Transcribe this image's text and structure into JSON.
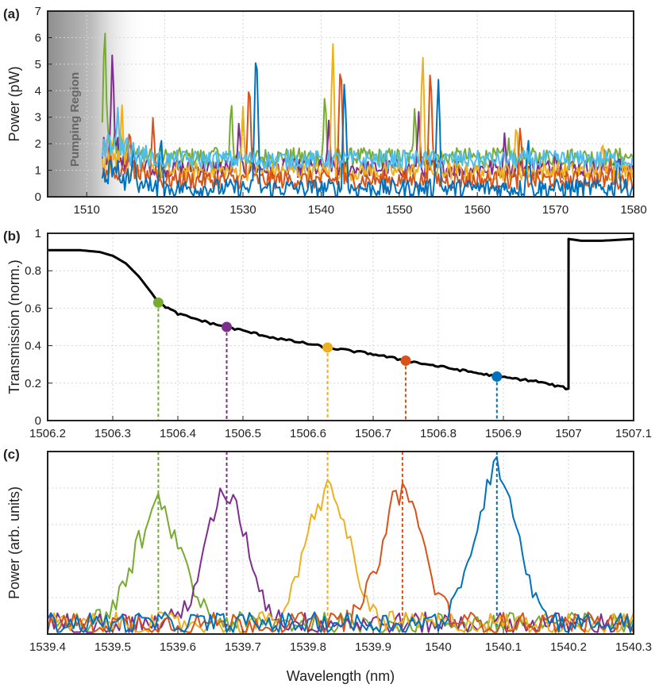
{
  "panels": [
    {
      "label": "(a)",
      "ylabel": "Power (pW)",
      "xlim": [
        1505,
        1580
      ],
      "ylim": [
        0,
        7
      ],
      "xticks": [
        1510,
        1520,
        1530,
        1540,
        1550,
        1560,
        1570,
        1580
      ],
      "yticks": [
        0,
        1,
        2,
        3,
        4,
        5,
        6,
        7
      ],
      "annotation": "Pumping Region",
      "grid": true
    },
    {
      "label": "(b)",
      "ylabel": "Transmission (norm.)",
      "xlim": [
        1506.2,
        1507.1
      ],
      "ylim": [
        0,
        1
      ],
      "xticks": [
        1506.2,
        1506.3,
        1506.4,
        1506.5,
        1506.6,
        1506.7,
        1506.8,
        1506.9,
        1507,
        1507.1
      ],
      "yticks": [
        0,
        0.2,
        0.4,
        0.6,
        0.8,
        1
      ],
      "grid": true
    },
    {
      "label": "(c)",
      "ylabel": "Power (arb. units)",
      "xlabel": "Wavelength (nm)",
      "xlim": [
        1539.4,
        1540.3
      ],
      "xticks": [
        1539.4,
        1539.5,
        1539.6,
        1539.7,
        1539.8,
        1539.9,
        1540,
        1540.1,
        1540.2,
        1540.3
      ],
      "grid": true
    }
  ],
  "chart_data": [
    {
      "type": "line",
      "panel": "(a)",
      "ylabel": "Power (pW)",
      "xlim": [
        1505,
        1580
      ],
      "ylim": [
        0,
        7
      ],
      "pumping_region": [
        1505,
        1512
      ],
      "noise_floor": 0.2,
      "series": [
        {
          "color": "#77ac30",
          "baseline": 1.5,
          "peaks": [
            [
              1512.3,
              7.0
            ],
            [
              1519.0,
              1.2
            ],
            [
              1526.5,
              2.2
            ],
            [
              1528.5,
              3.9
            ],
            [
              1530.0,
              3.3
            ],
            [
              1540.5,
              4.2
            ],
            [
              1552.0,
              3.6
            ],
            [
              1562.7,
              1.9
            ],
            [
              1564.0,
              2.3
            ],
            [
              1572.0,
              2.0
            ]
          ]
        },
        {
          "color": "#7e2f8e",
          "baseline": 1.1,
          "peaks": [
            [
              1513.3,
              5.8
            ],
            [
              1529.5,
              3.0
            ],
            [
              1541.0,
              3.0
            ],
            [
              1552.5,
              3.2
            ],
            [
              1563.5,
              2.5
            ],
            [
              1570.0,
              1.8
            ],
            [
              1578.0,
              1.6
            ]
          ]
        },
        {
          "color": "#edb120",
          "baseline": 1.0,
          "peaks": [
            [
              1514.5,
              3.6
            ],
            [
              1517.5,
              2.2
            ],
            [
              1530.0,
              3.4
            ],
            [
              1541.5,
              6.0
            ],
            [
              1553.0,
              5.7
            ],
            [
              1565.0,
              3.0
            ],
            [
              1576.0,
              2.3
            ]
          ]
        },
        {
          "color": "#d95319",
          "baseline": 0.7,
          "peaks": [
            [
              1515.5,
              2.8
            ],
            [
              1518.5,
              3.1
            ],
            [
              1530.8,
              4.7
            ],
            [
              1542.5,
              5.5
            ],
            [
              1554.0,
              5.2
            ],
            [
              1565.5,
              2.8
            ],
            [
              1577.0,
              1.5
            ]
          ]
        },
        {
          "color": "#0072bd",
          "baseline": 0.4,
          "peaks": [
            [
              1516.0,
              2.0
            ],
            [
              1519.5,
              2.4
            ],
            [
              1531.7,
              6.0
            ],
            [
              1543.0,
              4.6
            ],
            [
              1555.0,
              4.6
            ],
            [
              1566.5,
              2.3
            ],
            [
              1578.0,
              1.6
            ]
          ]
        },
        {
          "color": "#4dbeee",
          "baseline": 1.5,
          "peaks": [
            [
              1514.0,
              3.5
            ],
            [
              1528.3,
              1.9
            ],
            [
              1540.0,
              1.8
            ],
            [
              1551.5,
              1.8
            ],
            [
              1562.5,
              1.7
            ],
            [
              1574.0,
              1.6
            ]
          ]
        }
      ]
    },
    {
      "type": "line",
      "panel": "(b)",
      "ylabel": "Transmission (norm.)",
      "xlim": [
        1506.2,
        1507.1
      ],
      "ylim": [
        0,
        1
      ],
      "series": [
        {
          "color": "#000000",
          "x": [
            1506.2,
            1506.25,
            1506.28,
            1506.3,
            1506.32,
            1506.34,
            1506.36,
            1506.37,
            1506.4,
            1506.45,
            1506.475,
            1506.5,
            1506.55,
            1506.6,
            1506.63,
            1506.65,
            1506.7,
            1506.75,
            1506.8,
            1506.85,
            1506.89,
            1506.95,
            1507.0,
            1507.0001,
            1507.02,
            1507.05,
            1507.1
          ],
          "y": [
            0.91,
            0.91,
            0.9,
            0.88,
            0.84,
            0.77,
            0.68,
            0.63,
            0.57,
            0.52,
            0.5,
            0.48,
            0.44,
            0.41,
            0.39,
            0.38,
            0.355,
            0.32,
            0.29,
            0.26,
            0.235,
            0.21,
            0.17,
            0.97,
            0.96,
            0.96,
            0.97
          ]
        }
      ],
      "markers": [
        {
          "x": 1506.37,
          "y": 0.63,
          "color": "#77ac30"
        },
        {
          "x": 1506.475,
          "y": 0.5,
          "color": "#7e2f8e"
        },
        {
          "x": 1506.63,
          "y": 0.39,
          "color": "#edb120"
        },
        {
          "x": 1506.75,
          "y": 0.32,
          "color": "#d95319"
        },
        {
          "x": 1506.89,
          "y": 0.235,
          "color": "#0072bd"
        }
      ]
    },
    {
      "type": "line",
      "panel": "(c)",
      "ylabel": "Power (arb. units)",
      "xlabel": "Wavelength (nm)",
      "xlim": [
        1539.4,
        1540.3
      ],
      "ylim": [
        0,
        1
      ],
      "noise_level": 0.12,
      "series": [
        {
          "color": "#77ac30",
          "center": 1539.57,
          "peak": 0.62,
          "width": 0.05
        },
        {
          "color": "#7e2f8e",
          "center": 1539.675,
          "peak": 0.7,
          "width": 0.045
        },
        {
          "color": "#edb120",
          "center": 1539.83,
          "peak": 0.74,
          "width": 0.045
        },
        {
          "color": "#d95319",
          "center": 1539.945,
          "peak": 0.72,
          "width": 0.045
        },
        {
          "color": "#0072bd",
          "center": 1540.09,
          "peak": 0.85,
          "width": 0.045
        }
      ],
      "markers_x": [
        1539.57,
        1539.675,
        1539.83,
        1539.945,
        1540.09
      ]
    }
  ]
}
